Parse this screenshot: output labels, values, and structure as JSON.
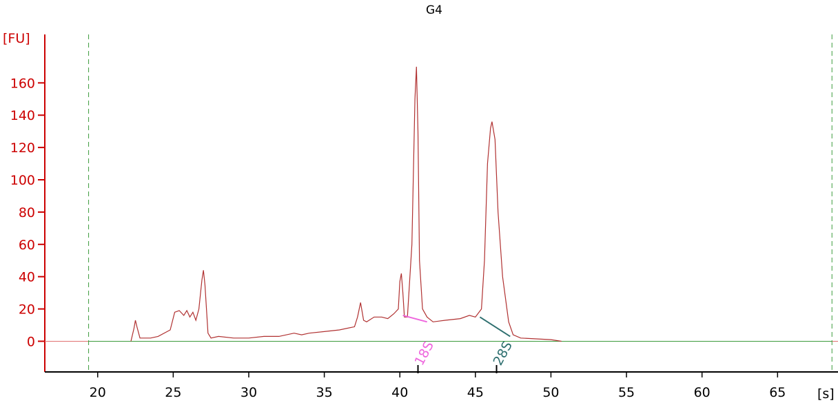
{
  "chart_data": {
    "type": "line",
    "title": "G4",
    "ylabel": "[FU]",
    "xlabel": "[s]",
    "xlim": [
      16.5,
      69
    ],
    "ylim": [
      -19,
      190
    ],
    "x_ticks": [
      20,
      25,
      30,
      35,
      40,
      45,
      50,
      55,
      60,
      65
    ],
    "y_ticks": [
      0,
      20,
      40,
      60,
      80,
      100,
      120,
      140,
      160
    ],
    "x_tick_labels": [
      "20",
      "25",
      "30",
      "35",
      "40",
      "45",
      "50",
      "55",
      "60",
      "65"
    ],
    "y_tick_labels": [
      "0",
      "20",
      "40",
      "60",
      "80",
      "100",
      "120",
      "140",
      "160"
    ],
    "grid": false,
    "baseline": 0,
    "markers": [
      19.4,
      68.6
    ],
    "series": [
      {
        "color": "#b03030",
        "x": [
          22.2,
          22.4,
          22.5,
          22.6,
          22.8,
          23.5,
          24.0,
          24.8,
          25.1,
          25.4,
          25.7,
          25.9,
          26.1,
          26.3,
          26.5,
          26.7,
          26.9,
          27.0,
          27.1,
          27.3,
          27.5,
          28.0,
          29.0,
          30.0,
          31.0,
          32.0,
          33.0,
          33.5,
          34.0,
          35.0,
          36.0,
          37.0,
          37.2,
          37.4,
          37.6,
          37.8,
          38.3,
          38.8,
          39.2,
          39.6,
          39.9,
          40.0,
          40.1,
          40.2,
          40.3,
          40.5,
          40.8,
          41.0,
          41.1,
          41.2,
          41.3,
          41.5,
          41.8,
          42.2,
          43.0,
          44.0,
          44.6,
          45.0,
          45.4,
          45.6,
          45.8,
          46.0,
          46.1,
          46.3,
          46.5,
          46.8,
          47.2,
          47.5,
          48.0,
          50.0,
          50.7
        ],
        "y": [
          0,
          8,
          13,
          9,
          2,
          2,
          3,
          7,
          18,
          19,
          16,
          19,
          15,
          18,
          13,
          20,
          38,
          44,
          35,
          5,
          2,
          3,
          2,
          2,
          3,
          3,
          5,
          4,
          5,
          6,
          7,
          9,
          15,
          24,
          13,
          12,
          15,
          15,
          14,
          17,
          20,
          37,
          42,
          30,
          15,
          15,
          60,
          150,
          170,
          130,
          50,
          20,
          15,
          12,
          13,
          14,
          16,
          15,
          20,
          50,
          110,
          132,
          136,
          125,
          80,
          40,
          12,
          4,
          2,
          1,
          0
        ]
      }
    ],
    "peak_labels": [
      {
        "text": "18S",
        "x": 41.2,
        "color": "#ee66dd"
      },
      {
        "text": "28S",
        "x": 46.4,
        "color": "#2e6f6f"
      }
    ],
    "peak_segments": [
      {
        "label": "18S",
        "x1": 40.2,
        "y1": 16,
        "x2": 41.8,
        "y2": 12
      },
      {
        "label": "28S",
        "x1": 45.3,
        "y1": 15,
        "x2": 47.3,
        "y2": 3
      }
    ]
  }
}
